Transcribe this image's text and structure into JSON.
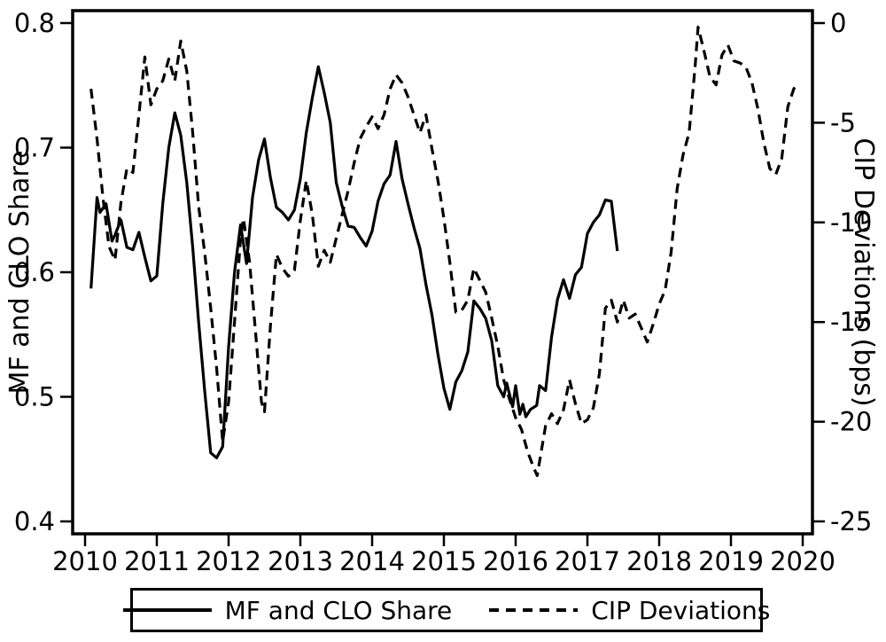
{
  "figure": {
    "background": "#ffffff",
    "foreground": "#000000"
  },
  "chart_data": {
    "type": "line",
    "title": "",
    "grid": false,
    "x_axis": {
      "range": [
        2010,
        2020
      ],
      "ticks": [
        {
          "label": "2010",
          "value": 2010
        },
        {
          "label": "2011",
          "value": 2011
        },
        {
          "label": "2012",
          "value": 2012
        },
        {
          "label": "2013",
          "value": 2013
        },
        {
          "label": "2014",
          "value": 2014
        },
        {
          "label": "2015",
          "value": 2015
        },
        {
          "label": "2016",
          "value": 2016
        },
        {
          "label": "2017",
          "value": 2017
        },
        {
          "label": "2018",
          "value": 2018
        },
        {
          "label": "2019",
          "value": 2019
        },
        {
          "label": "2020",
          "value": 2020
        }
      ]
    },
    "left_axis": {
      "label": "MF and CLO Share",
      "range": [
        0.4,
        0.8
      ],
      "ticks": [
        {
          "label": "0.8",
          "value": 0.8
        },
        {
          "label": "0.7",
          "value": 0.7
        },
        {
          "label": "0.6",
          "value": 0.6
        },
        {
          "label": "0.5",
          "value": 0.5
        },
        {
          "label": "0.4",
          "value": 0.4
        }
      ]
    },
    "right_axis": {
      "label": "CIP Deviations (bps)",
      "range": [
        -25,
        0
      ],
      "ticks": [
        {
          "label": "0",
          "value": 0
        },
        {
          "label": "-5",
          "value": -5
        },
        {
          "label": "-10",
          "value": -10
        },
        {
          "label": "-15",
          "value": -15
        },
        {
          "label": "-20",
          "value": -20
        },
        {
          "label": "-25",
          "value": -25
        }
      ]
    },
    "legend": {
      "position": "bottom",
      "border": true
    },
    "series": [
      {
        "id": "mf-clo-share",
        "name": "MF and CLO Share",
        "axis": "left",
        "line_style": "solid",
        "color": "#000000",
        "points": [
          [
            2010.083,
            0.587
          ],
          [
            2010.167,
            0.66
          ],
          [
            2010.208,
            0.648
          ],
          [
            2010.292,
            0.655
          ],
          [
            2010.375,
            0.625
          ],
          [
            2010.417,
            0.63
          ],
          [
            2010.5,
            0.642
          ],
          [
            2010.583,
            0.62
          ],
          [
            2010.667,
            0.618
          ],
          [
            2010.75,
            0.632
          ],
          [
            2010.833,
            0.612
          ],
          [
            2010.917,
            0.593
          ],
          [
            2011.0,
            0.597
          ],
          [
            2011.083,
            0.655
          ],
          [
            2011.167,
            0.7
          ],
          [
            2011.25,
            0.728
          ],
          [
            2011.333,
            0.71
          ],
          [
            2011.417,
            0.672
          ],
          [
            2011.5,
            0.62
          ],
          [
            2011.583,
            0.56
          ],
          [
            2011.667,
            0.505
          ],
          [
            2011.75,
            0.455
          ],
          [
            2011.833,
            0.451
          ],
          [
            2011.917,
            0.46
          ],
          [
            2012.0,
            0.54
          ],
          [
            2012.083,
            0.6
          ],
          [
            2012.167,
            0.638
          ],
          [
            2012.25,
            0.607
          ],
          [
            2012.333,
            0.66
          ],
          [
            2012.417,
            0.69
          ],
          [
            2012.5,
            0.707
          ],
          [
            2012.583,
            0.676
          ],
          [
            2012.667,
            0.652
          ],
          [
            2012.75,
            0.648
          ],
          [
            2012.833,
            0.642
          ],
          [
            2012.917,
            0.65
          ],
          [
            2013.0,
            0.675
          ],
          [
            2013.083,
            0.712
          ],
          [
            2013.167,
            0.74
          ],
          [
            2013.25,
            0.765
          ],
          [
            2013.333,
            0.744
          ],
          [
            2013.417,
            0.72
          ],
          [
            2013.5,
            0.672
          ],
          [
            2013.583,
            0.653
          ],
          [
            2013.667,
            0.637
          ],
          [
            2013.75,
            0.636
          ],
          [
            2013.833,
            0.628
          ],
          [
            2013.917,
            0.621
          ],
          [
            2014.0,
            0.633
          ],
          [
            2014.083,
            0.657
          ],
          [
            2014.167,
            0.671
          ],
          [
            2014.25,
            0.678
          ],
          [
            2014.333,
            0.705
          ],
          [
            2014.417,
            0.675
          ],
          [
            2014.5,
            0.655
          ],
          [
            2014.583,
            0.636
          ],
          [
            2014.667,
            0.619
          ],
          [
            2014.75,
            0.59
          ],
          [
            2014.833,
            0.566
          ],
          [
            2014.917,
            0.534
          ],
          [
            2015.0,
            0.507
          ],
          [
            2015.083,
            0.49
          ],
          [
            2015.167,
            0.512
          ],
          [
            2015.25,
            0.521
          ],
          [
            2015.333,
            0.536
          ],
          [
            2015.417,
            0.577
          ],
          [
            2015.5,
            0.571
          ],
          [
            2015.583,
            0.563
          ],
          [
            2015.667,
            0.545
          ],
          [
            2015.75,
            0.509
          ],
          [
            2015.833,
            0.5
          ],
          [
            2015.875,
            0.511
          ],
          [
            2015.958,
            0.492
          ],
          [
            2016.0,
            0.509
          ],
          [
            2016.058,
            0.486
          ],
          [
            2016.1,
            0.494
          ],
          [
            2016.142,
            0.484
          ],
          [
            2016.208,
            0.49
          ],
          [
            2016.292,
            0.493
          ],
          [
            2016.333,
            0.509
          ],
          [
            2016.417,
            0.505
          ],
          [
            2016.5,
            0.548
          ],
          [
            2016.583,
            0.578
          ],
          [
            2016.667,
            0.594
          ],
          [
            2016.75,
            0.579
          ],
          [
            2016.833,
            0.598
          ],
          [
            2016.917,
            0.604
          ],
          [
            2017.0,
            0.631
          ],
          [
            2017.083,
            0.64
          ],
          [
            2017.167,
            0.646
          ],
          [
            2017.25,
            0.658
          ],
          [
            2017.333,
            0.657
          ],
          [
            2017.417,
            0.617
          ]
        ]
      },
      {
        "id": "cip-deviations",
        "name": "CIP Deviations",
        "axis": "right",
        "line_style": "dashed",
        "color": "#000000",
        "points": [
          [
            2010.083,
            -3.3
          ],
          [
            2010.167,
            -5.8
          ],
          [
            2010.25,
            -8.8
          ],
          [
            2010.333,
            -11.2
          ],
          [
            2010.417,
            -11.9
          ],
          [
            2010.5,
            -9.0
          ],
          [
            2010.583,
            -7.3
          ],
          [
            2010.667,
            -7.5
          ],
          [
            2010.75,
            -4.6
          ],
          [
            2010.833,
            -1.7
          ],
          [
            2010.917,
            -4.1
          ],
          [
            2011.0,
            -3.3
          ],
          [
            2011.083,
            -2.9
          ],
          [
            2011.167,
            -1.8
          ],
          [
            2011.25,
            -2.9
          ],
          [
            2011.333,
            -0.9
          ],
          [
            2011.417,
            -2.4
          ],
          [
            2011.5,
            -5.5
          ],
          [
            2011.583,
            -9.2
          ],
          [
            2011.667,
            -11.5
          ],
          [
            2011.75,
            -14.3
          ],
          [
            2011.833,
            -17.3
          ],
          [
            2011.917,
            -21.0
          ],
          [
            2012.0,
            -19.0
          ],
          [
            2012.083,
            -15.0
          ],
          [
            2012.167,
            -10.8
          ],
          [
            2012.208,
            -9.8
          ],
          [
            2012.292,
            -12.0
          ],
          [
            2012.375,
            -15.5
          ],
          [
            2012.458,
            -19.0
          ],
          [
            2012.5,
            -19.5
          ],
          [
            2012.583,
            -15.2
          ],
          [
            2012.667,
            -11.6
          ],
          [
            2012.75,
            -12.3
          ],
          [
            2012.833,
            -12.7
          ],
          [
            2012.917,
            -12.4
          ],
          [
            2013.0,
            -9.9
          ],
          [
            2013.083,
            -7.9
          ],
          [
            2013.167,
            -9.6
          ],
          [
            2013.25,
            -12.2
          ],
          [
            2013.333,
            -11.4
          ],
          [
            2013.417,
            -12.0
          ],
          [
            2013.5,
            -10.8
          ],
          [
            2013.583,
            -9.6
          ],
          [
            2013.667,
            -8.4
          ],
          [
            2013.75,
            -7.0
          ],
          [
            2013.833,
            -5.8
          ],
          [
            2013.917,
            -5.2
          ],
          [
            2014.0,
            -4.7
          ],
          [
            2014.083,
            -5.3
          ],
          [
            2014.167,
            -4.6
          ],
          [
            2014.25,
            -3.3
          ],
          [
            2014.333,
            -2.6
          ],
          [
            2014.417,
            -3.0
          ],
          [
            2014.5,
            -3.7
          ],
          [
            2014.583,
            -4.6
          ],
          [
            2014.667,
            -5.5
          ],
          [
            2014.75,
            -4.6
          ],
          [
            2014.833,
            -6.3
          ],
          [
            2014.917,
            -7.9
          ],
          [
            2015.0,
            -9.8
          ],
          [
            2015.083,
            -12.0
          ],
          [
            2015.167,
            -14.5
          ],
          [
            2015.25,
            -14.4
          ],
          [
            2015.333,
            -13.9
          ],
          [
            2015.417,
            -12.3
          ],
          [
            2015.5,
            -12.9
          ],
          [
            2015.583,
            -13.5
          ],
          [
            2015.667,
            -14.8
          ],
          [
            2015.75,
            -16.2
          ],
          [
            2015.833,
            -17.9
          ],
          [
            2015.917,
            -18.9
          ],
          [
            2016.0,
            -19.8
          ],
          [
            2016.083,
            -20.4
          ],
          [
            2016.167,
            -21.5
          ],
          [
            2016.25,
            -22.3
          ],
          [
            2016.3,
            -22.7
          ],
          [
            2016.417,
            -20.2
          ],
          [
            2016.5,
            -19.6
          ],
          [
            2016.583,
            -20.1
          ],
          [
            2016.667,
            -19.4
          ],
          [
            2016.75,
            -17.9
          ],
          [
            2016.833,
            -19.1
          ],
          [
            2016.917,
            -20.1
          ],
          [
            2017.0,
            -19.9
          ],
          [
            2017.083,
            -19.3
          ],
          [
            2017.167,
            -17.6
          ],
          [
            2017.25,
            -14.3
          ],
          [
            2017.333,
            -13.9
          ],
          [
            2017.417,
            -15.0
          ],
          [
            2017.5,
            -13.9
          ],
          [
            2017.583,
            -14.8
          ],
          [
            2017.667,
            -14.6
          ],
          [
            2017.75,
            -15.3
          ],
          [
            2017.833,
            -16.0
          ],
          [
            2017.917,
            -15.1
          ],
          [
            2018.0,
            -14.1
          ],
          [
            2018.083,
            -13.4
          ],
          [
            2018.167,
            -11.5
          ],
          [
            2018.25,
            -8.3
          ],
          [
            2018.333,
            -6.6
          ],
          [
            2018.417,
            -5.5
          ],
          [
            2018.5,
            -2.2
          ],
          [
            2018.542,
            -0.2
          ],
          [
            2018.625,
            -1.4
          ],
          [
            2018.708,
            -2.7
          ],
          [
            2018.792,
            -3.1
          ],
          [
            2018.875,
            -1.6
          ],
          [
            2018.958,
            -1.1
          ],
          [
            2019.042,
            -1.9
          ],
          [
            2019.125,
            -2.0
          ],
          [
            2019.208,
            -2.2
          ],
          [
            2019.292,
            -3.0
          ],
          [
            2019.375,
            -4.3
          ],
          [
            2019.458,
            -6.0
          ],
          [
            2019.542,
            -7.3
          ],
          [
            2019.625,
            -7.6
          ],
          [
            2019.708,
            -6.8
          ],
          [
            2019.792,
            -4.2
          ],
          [
            2019.875,
            -3.3
          ],
          [
            2019.917,
            -3.1
          ]
        ]
      }
    ]
  }
}
